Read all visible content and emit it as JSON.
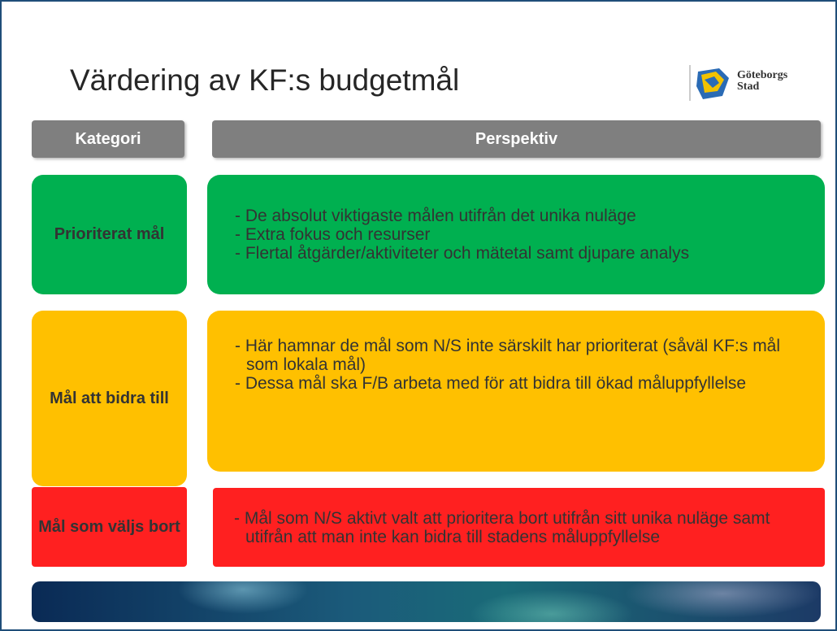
{
  "header": {
    "title": "Värdering av KF:s budgetmål",
    "logo": [
      "Göteborgs",
      "Stad"
    ]
  },
  "table": {
    "columns": [
      "Kategori",
      "Perspektiv"
    ],
    "rows": [
      {
        "category": "Prioriterat mål",
        "items": [
          "- De absolut viktigaste målen utifrån det unika nuläge",
          "- Extra fokus och resurser",
          "- Flertal åtgärder/aktiviteter och mätetal samt djupare analys"
        ]
      },
      {
        "category": "Mål att bidra till",
        "items": [
          "- Här hamnar de mål som N/S inte särskilt har prioriterat (såväl KF:s mål som lokala mål)",
          "- Dessa mål ska F/B arbeta med för att bidra till ökad måluppfyllelse"
        ]
      },
      {
        "category": "Mål som väljs bort",
        "items": [
          "- Mål som N/S aktivt valt att prioritera bort utifrån sitt unika nuläge samt utifrån att man inte kan bidra till stadens måluppfyllelse"
        ]
      }
    ]
  }
}
